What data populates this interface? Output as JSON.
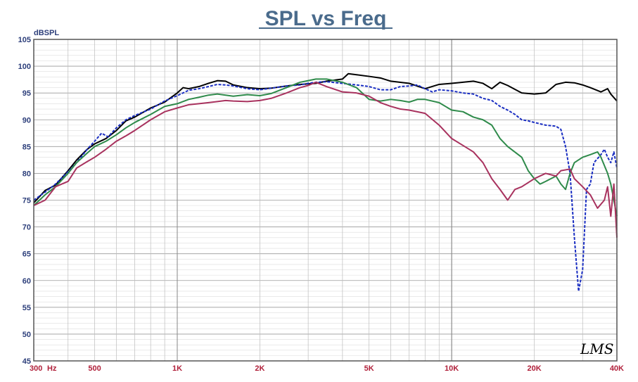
{
  "chart_data": {
    "type": "line",
    "title": "SPL vs Freq",
    "ylabel": "dBSPL",
    "xlabel": "",
    "xscale": "log",
    "xlim": [
      300,
      40000
    ],
    "ylim": [
      45,
      105
    ],
    "yticks": [
      "45",
      "50",
      "55",
      "60",
      "65",
      "70",
      "75",
      "80",
      "85",
      "90",
      "95",
      "100",
      "105"
    ],
    "xticks": [
      {
        "value": 300,
        "label": "300"
      },
      {
        "value": 500,
        "label": "500"
      },
      {
        "value": 1000,
        "label": "1K"
      },
      {
        "value": 2000,
        "label": "2K"
      },
      {
        "value": 5000,
        "label": "5K"
      },
      {
        "value": 10000,
        "label": "10K"
      },
      {
        "value": 20000,
        "label": "20K"
      },
      {
        "value": 40000,
        "label": "40K"
      }
    ],
    "xunit": "Hz",
    "grid": true,
    "logo": "LMS",
    "series": [
      {
        "color": "#000000",
        "dash": "solid",
        "points": [
          [
            300,
            74.5
          ],
          [
            330,
            76.8
          ],
          [
            360,
            77.8
          ],
          [
            400,
            80.5
          ],
          [
            430,
            82.5
          ],
          [
            470,
            84.5
          ],
          [
            500,
            85.5
          ],
          [
            550,
            86.5
          ],
          [
            600,
            88
          ],
          [
            650,
            89.8
          ],
          [
            700,
            90.5
          ],
          [
            800,
            92.2
          ],
          [
            900,
            93.3
          ],
          [
            1000,
            95
          ],
          [
            1050,
            96
          ],
          [
            1100,
            95.8
          ],
          [
            1200,
            96.2
          ],
          [
            1300,
            96.8
          ],
          [
            1400,
            97.3
          ],
          [
            1500,
            97.2
          ],
          [
            1600,
            96.5
          ],
          [
            1800,
            96
          ],
          [
            2000,
            95.8
          ],
          [
            2200,
            95.9
          ],
          [
            2500,
            96.3
          ],
          [
            2800,
            96.6
          ],
          [
            3000,
            96.7
          ],
          [
            3200,
            96.8
          ],
          [
            3500,
            97.2
          ],
          [
            4000,
            97.6
          ],
          [
            4200,
            98.6
          ],
          [
            4500,
            98.4
          ],
          [
            5000,
            98.1
          ],
          [
            5500,
            97.8
          ],
          [
            6000,
            97.2
          ],
          [
            7000,
            96.8
          ],
          [
            8000,
            95.8
          ],
          [
            9000,
            96.6
          ],
          [
            10000,
            96.8
          ],
          [
            11000,
            97
          ],
          [
            12000,
            97.2
          ],
          [
            13000,
            96.8
          ],
          [
            14000,
            95.8
          ],
          [
            15000,
            97
          ],
          [
            16000,
            96.4
          ],
          [
            18000,
            95
          ],
          [
            20000,
            94.8
          ],
          [
            22000,
            95
          ],
          [
            24000,
            96.6
          ],
          [
            26000,
            97
          ],
          [
            28000,
            96.9
          ],
          [
            30000,
            96.5
          ],
          [
            32000,
            96
          ],
          [
            35000,
            95.2
          ],
          [
            37000,
            95.8
          ],
          [
            38000,
            94.8
          ],
          [
            40000,
            93.5
          ]
        ]
      },
      {
        "color": "#1a2ec2",
        "dash": "dashed",
        "points": [
          [
            300,
            75
          ],
          [
            330,
            76.5
          ],
          [
            360,
            78
          ],
          [
            400,
            80.3
          ],
          [
            430,
            82
          ],
          [
            470,
            84.5
          ],
          [
            500,
            86
          ],
          [
            530,
            87.5
          ],
          [
            560,
            86.8
          ],
          [
            600,
            88.5
          ],
          [
            650,
            90
          ],
          [
            700,
            90.8
          ],
          [
            800,
            92
          ],
          [
            900,
            93.5
          ],
          [
            1000,
            94.5
          ],
          [
            1100,
            95.5
          ],
          [
            1200,
            95.8
          ],
          [
            1300,
            96.2
          ],
          [
            1400,
            96.6
          ],
          [
            1500,
            96.5
          ],
          [
            1600,
            96.3
          ],
          [
            1800,
            95.8
          ],
          [
            2000,
            95.6
          ],
          [
            2200,
            95.9
          ],
          [
            2500,
            96.3
          ],
          [
            2800,
            96.5
          ],
          [
            3000,
            96.8
          ],
          [
            3200,
            97
          ],
          [
            3500,
            97.1
          ],
          [
            4000,
            96.8
          ],
          [
            4500,
            96.5
          ],
          [
            5000,
            96.2
          ],
          [
            5500,
            95.6
          ],
          [
            6000,
            95.6
          ],
          [
            6500,
            96.2
          ],
          [
            7000,
            96.3
          ],
          [
            7500,
            96.5
          ],
          [
            8000,
            95.8
          ],
          [
            8500,
            95.2
          ],
          [
            9000,
            95.6
          ],
          [
            10000,
            95.4
          ],
          [
            11000,
            95
          ],
          [
            12000,
            94.8
          ],
          [
            13000,
            94
          ],
          [
            14000,
            93.6
          ],
          [
            15000,
            92.5
          ],
          [
            16000,
            91.8
          ],
          [
            17000,
            91
          ],
          [
            18000,
            90
          ],
          [
            19000,
            89.8
          ],
          [
            20000,
            89.5
          ],
          [
            22000,
            89
          ],
          [
            24000,
            88.8
          ],
          [
            25000,
            88.2
          ],
          [
            26000,
            85
          ],
          [
            27000,
            80
          ],
          [
            28000,
            68
          ],
          [
            29000,
            58
          ],
          [
            30000,
            62
          ],
          [
            31000,
            77
          ],
          [
            32000,
            78
          ],
          [
            33000,
            82
          ],
          [
            35000,
            83.5
          ],
          [
            36000,
            84.5
          ],
          [
            37000,
            83
          ],
          [
            38000,
            82
          ],
          [
            39000,
            84
          ],
          [
            40000,
            81
          ]
        ]
      },
      {
        "color": "#2e8a4a",
        "dash": "solid",
        "points": [
          [
            300,
            74
          ],
          [
            330,
            76
          ],
          [
            360,
            77.5
          ],
          [
            400,
            80
          ],
          [
            430,
            82
          ],
          [
            470,
            83.8
          ],
          [
            500,
            85
          ],
          [
            550,
            86
          ],
          [
            600,
            87.2
          ],
          [
            650,
            88.5
          ],
          [
            700,
            89.5
          ],
          [
            800,
            91
          ],
          [
            900,
            92.5
          ],
          [
            1000,
            93
          ],
          [
            1100,
            93.8
          ],
          [
            1200,
            94.2
          ],
          [
            1300,
            94.6
          ],
          [
            1400,
            94.8
          ],
          [
            1500,
            94.6
          ],
          [
            1600,
            94.4
          ],
          [
            1800,
            94.7
          ],
          [
            2000,
            94.5
          ],
          [
            2200,
            94.9
          ],
          [
            2500,
            96
          ],
          [
            2800,
            97
          ],
          [
            3000,
            97.3
          ],
          [
            3200,
            97.6
          ],
          [
            3500,
            97.6
          ],
          [
            4000,
            97
          ],
          [
            4500,
            96
          ],
          [
            5000,
            93.8
          ],
          [
            5500,
            93.5
          ],
          [
            6000,
            93.8
          ],
          [
            6500,
            93.6
          ],
          [
            7000,
            93.3
          ],
          [
            7500,
            93.8
          ],
          [
            8000,
            93.8
          ],
          [
            9000,
            93.2
          ],
          [
            10000,
            91.8
          ],
          [
            11000,
            91.5
          ],
          [
            12000,
            90.5
          ],
          [
            13000,
            90
          ],
          [
            14000,
            89
          ],
          [
            15000,
            86.5
          ],
          [
            16000,
            85
          ],
          [
            18000,
            83
          ],
          [
            19000,
            80.5
          ],
          [
            20000,
            79
          ],
          [
            21000,
            78
          ],
          [
            22000,
            78.5
          ],
          [
            24000,
            79.5
          ],
          [
            25000,
            78
          ],
          [
            26000,
            77
          ],
          [
            27000,
            80
          ],
          [
            28000,
            82
          ],
          [
            30000,
            83
          ],
          [
            32000,
            83.5
          ],
          [
            34000,
            84
          ],
          [
            35000,
            83
          ],
          [
            37000,
            80
          ],
          [
            38000,
            78
          ],
          [
            40000,
            72
          ]
        ]
      },
      {
        "color": "#a8325e",
        "dash": "solid",
        "points": [
          [
            300,
            74
          ],
          [
            330,
            75
          ],
          [
            360,
            77.5
          ],
          [
            400,
            78.5
          ],
          [
            430,
            81
          ],
          [
            470,
            82.2
          ],
          [
            500,
            83
          ],
          [
            550,
            84.5
          ],
          [
            600,
            86
          ],
          [
            650,
            87
          ],
          [
            700,
            88
          ],
          [
            800,
            90
          ],
          [
            900,
            91.5
          ],
          [
            1000,
            92.2
          ],
          [
            1100,
            92.8
          ],
          [
            1200,
            93
          ],
          [
            1300,
            93.2
          ],
          [
            1400,
            93.4
          ],
          [
            1500,
            93.6
          ],
          [
            1600,
            93.5
          ],
          [
            1800,
            93.4
          ],
          [
            2000,
            93.6
          ],
          [
            2200,
            94
          ],
          [
            2500,
            95
          ],
          [
            2800,
            96
          ],
          [
            3000,
            96.4
          ],
          [
            3200,
            97
          ],
          [
            3500,
            96.2
          ],
          [
            4000,
            95.2
          ],
          [
            4500,
            95
          ],
          [
            5000,
            94.4
          ],
          [
            5500,
            93.2
          ],
          [
            6000,
            92.5
          ],
          [
            6500,
            92
          ],
          [
            7000,
            91.8
          ],
          [
            8000,
            91.2
          ],
          [
            9000,
            89
          ],
          [
            10000,
            86.5
          ],
          [
            11000,
            85.2
          ],
          [
            12000,
            84
          ],
          [
            13000,
            82
          ],
          [
            14000,
            79
          ],
          [
            15000,
            77
          ],
          [
            16000,
            75
          ],
          [
            17000,
            77
          ],
          [
            18000,
            77.5
          ],
          [
            20000,
            79
          ],
          [
            22000,
            80
          ],
          [
            24000,
            79.5
          ],
          [
            25000,
            80.5
          ],
          [
            27000,
            80.8
          ],
          [
            28000,
            79
          ],
          [
            30000,
            77.5
          ],
          [
            32000,
            76
          ],
          [
            34000,
            73.5
          ],
          [
            36000,
            75
          ],
          [
            37000,
            77.5
          ],
          [
            38000,
            72
          ],
          [
            39000,
            78
          ],
          [
            40000,
            68
          ]
        ]
      }
    ]
  }
}
